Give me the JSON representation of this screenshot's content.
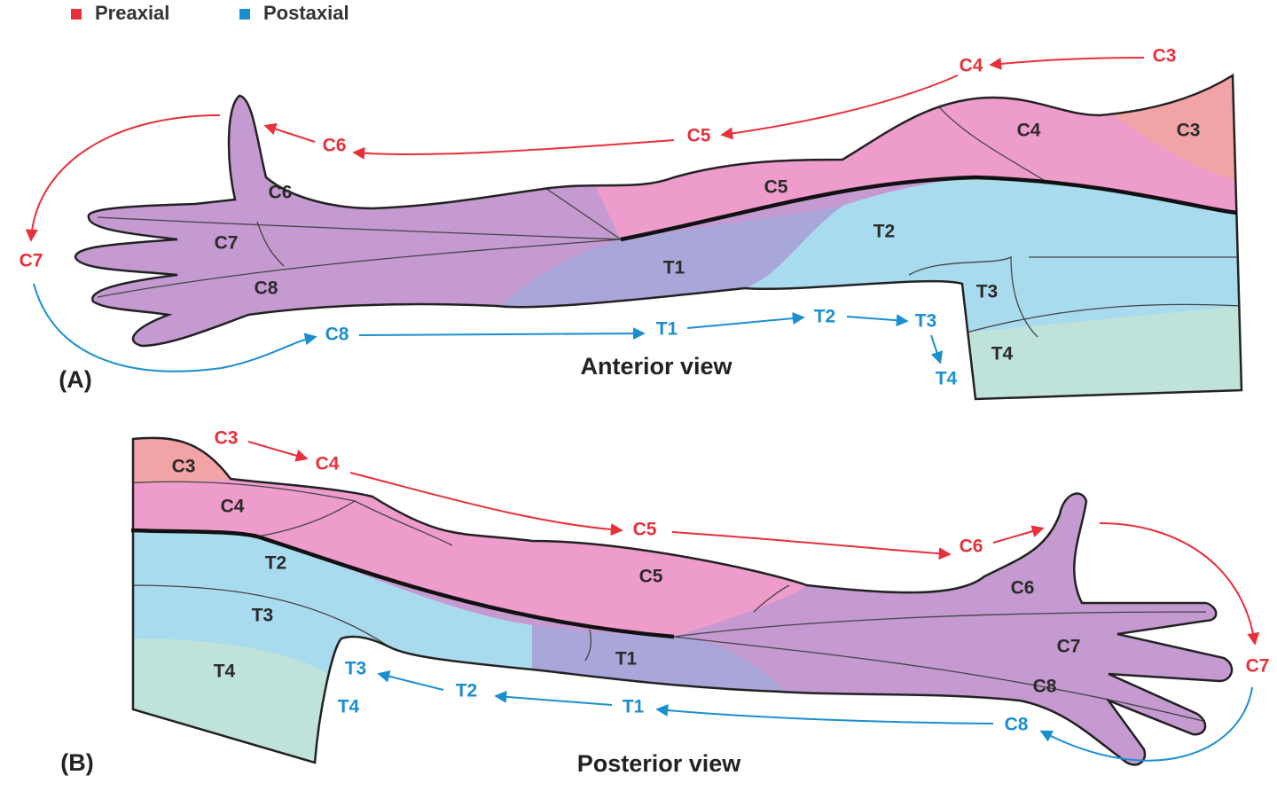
{
  "legend": [
    {
      "label": "Preaxial",
      "color": "#e8303a"
    },
    {
      "label": "Postaxial",
      "color": "#1a8fd0"
    }
  ],
  "panels": [
    {
      "label": "(A)",
      "caption": "Anterior view",
      "regions": [
        "C3",
        "C4",
        "C5",
        "C6",
        "C7",
        "C8",
        "T1",
        "T2",
        "T3",
        "T4"
      ],
      "preaxial_flow": [
        "C3",
        "C4",
        "C5",
        "C6",
        "C7"
      ],
      "postaxial_flow": [
        "C8",
        "T1",
        "T2",
        "T3",
        "T4"
      ]
    },
    {
      "label": "(B)",
      "caption": "Posterior view",
      "regions": [
        "C3",
        "C4",
        "C5",
        "C6",
        "C7",
        "C8",
        "T1",
        "T2",
        "T3",
        "T4"
      ],
      "preaxial_flow": [
        "C3",
        "C4",
        "C5",
        "C6",
        "C7"
      ],
      "postaxial_flow": [
        "C8",
        "T1",
        "T2",
        "T3",
        "T4"
      ]
    }
  ]
}
